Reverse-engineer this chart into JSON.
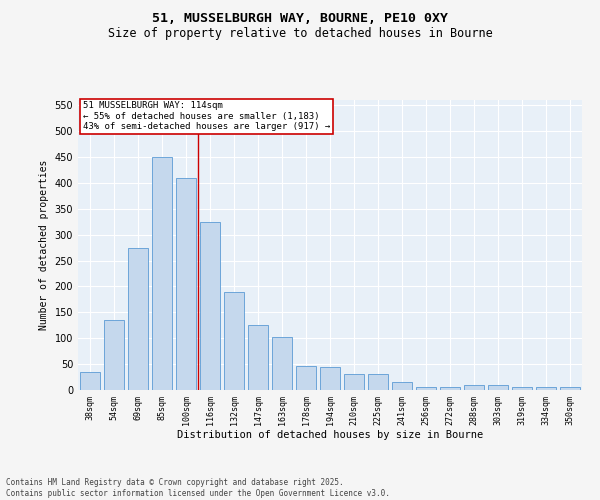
{
  "title": "51, MUSSELBURGH WAY, BOURNE, PE10 0XY",
  "subtitle": "Size of property relative to detached houses in Bourne",
  "xlabel": "Distribution of detached houses by size in Bourne",
  "ylabel": "Number of detached properties",
  "bar_labels": [
    "38sqm",
    "54sqm",
    "69sqm",
    "85sqm",
    "100sqm",
    "116sqm",
    "132sqm",
    "147sqm",
    "163sqm",
    "178sqm",
    "194sqm",
    "210sqm",
    "225sqm",
    "241sqm",
    "256sqm",
    "272sqm",
    "288sqm",
    "303sqm",
    "319sqm",
    "334sqm",
    "350sqm"
  ],
  "bar_values": [
    35,
    135,
    275,
    450,
    410,
    325,
    190,
    125,
    103,
    47,
    45,
    30,
    30,
    15,
    5,
    5,
    10,
    10,
    5,
    5,
    5
  ],
  "bar_color": "#c5d8ed",
  "bar_edge_color": "#5b9bd5",
  "vline_x": 4.5,
  "vline_color": "#cc0000",
  "annotation_text": "51 MUSSELBURGH WAY: 114sqm\n← 55% of detached houses are smaller (1,183)\n43% of semi-detached houses are larger (917) →",
  "annotation_box_color": "#ffffff",
  "annotation_box_edge_color": "#cc0000",
  "ylim": [
    0,
    560
  ],
  "yticks": [
    0,
    50,
    100,
    150,
    200,
    250,
    300,
    350,
    400,
    450,
    500,
    550
  ],
  "background_color": "#e8f0f8",
  "grid_color": "#ffffff",
  "footer": "Contains HM Land Registry data © Crown copyright and database right 2025.\nContains public sector information licensed under the Open Government Licence v3.0.",
  "fig_width": 6.0,
  "fig_height": 5.0,
  "dpi": 100
}
